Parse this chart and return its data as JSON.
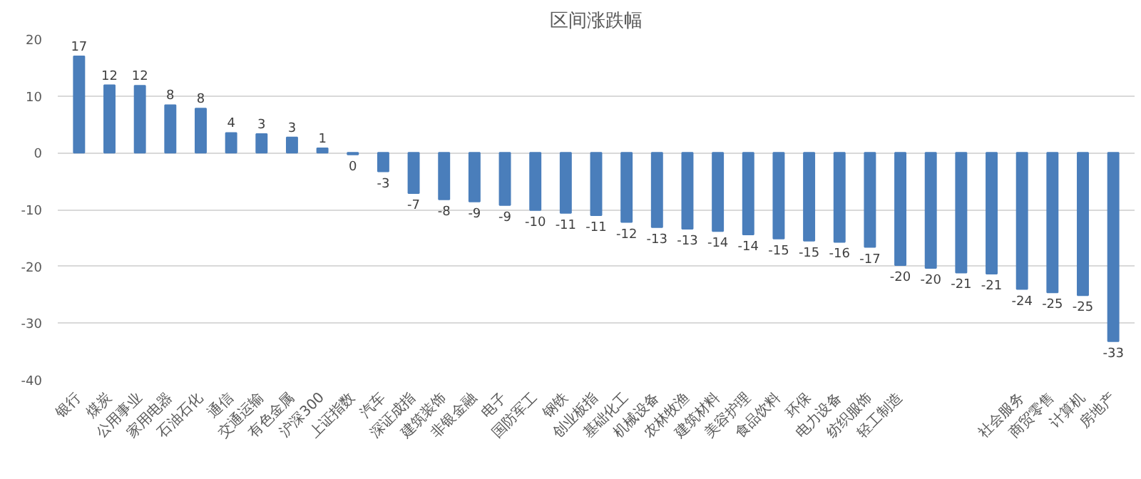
{
  "chart_data": {
    "type": "bar",
    "title": "区间涨跌幅",
    "categories": [
      "银行",
      "煤炭",
      "公用事业",
      "家用电器",
      "石油石化",
      "通信",
      "交通运输",
      "有色金属",
      "沪深300",
      "上证指数",
      "汽车",
      "深证成指",
      "建筑装饰",
      "非银金融",
      "电子",
      "国防军工",
      "钢铁",
      "创业板指",
      "基础化工",
      "机械设备",
      "农林牧渔",
      "建筑材料",
      "美容护理",
      "食品饮料",
      "环保",
      "电力设备",
      "纺织服饰",
      "轻工制造",
      null,
      null,
      null,
      "社会服务",
      "商贸零售",
      "计算机",
      "房地产"
    ],
    "values": [
      17,
      11.9,
      11.8,
      8.4,
      7.8,
      3.5,
      3.3,
      2.7,
      0.8,
      -0.3,
      -3.3,
      -7.1,
      -8.2,
      -8.6,
      -9.2,
      -10.1,
      -10.6,
      -11,
      -12.2,
      -13.1,
      -13.4,
      -13.8,
      -14.4,
      -15.1,
      -15.5,
      -15.7,
      -16.6,
      -19.8,
      -20.3,
      -21.1,
      -21.3,
      -24,
      -24.6,
      -25.1,
      -33.2
    ],
    "value_labels": [
      "17",
      "12",
      "12",
      "8",
      "8",
      "4",
      "3",
      "3",
      "1",
      "0",
      "-3",
      "-7",
      "-8",
      "-9",
      "-9",
      "-10",
      "-11",
      "-11",
      "-12",
      "-13",
      "-13",
      "-14",
      "-14",
      "-15",
      "-15",
      "-16",
      "-17",
      "-20",
      "-20",
      "-21",
      "-21",
      "-24",
      "-25",
      "-25",
      "-33"
    ],
    "color": "#4a7ebb",
    "ylim": [
      -40,
      20
    ],
    "yticks": [
      -40,
      -30,
      -20,
      -10,
      0,
      10,
      20
    ],
    "grid": "y"
  }
}
